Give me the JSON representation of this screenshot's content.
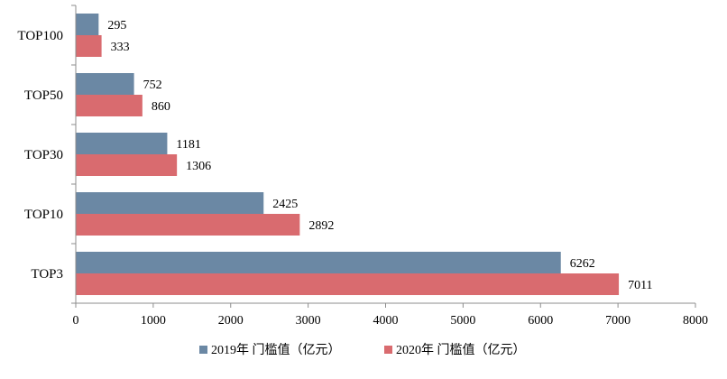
{
  "chart_data": {
    "type": "bar",
    "orientation": "horizontal",
    "categories": [
      "TOP100",
      "TOP50",
      "TOP30",
      "TOP10",
      "TOP3"
    ],
    "series": [
      {
        "name": "2019年 门槛值（亿元）",
        "values": [
          295,
          752,
          1181,
          2425,
          6262
        ],
        "color": "#6b88a4"
      },
      {
        "name": "2020年 门槛值（亿元）",
        "values": [
          333,
          860,
          1306,
          2892,
          7011
        ],
        "color": "#d96b6f"
      }
    ],
    "xlim": [
      0,
      8000
    ],
    "x_ticks": [
      "0",
      "1000",
      "2000",
      "3000",
      "4000",
      "5000",
      "6000",
      "7000",
      "8000"
    ],
    "grid": false,
    "legend_position": "bottom-center",
    "data_labels": true
  }
}
